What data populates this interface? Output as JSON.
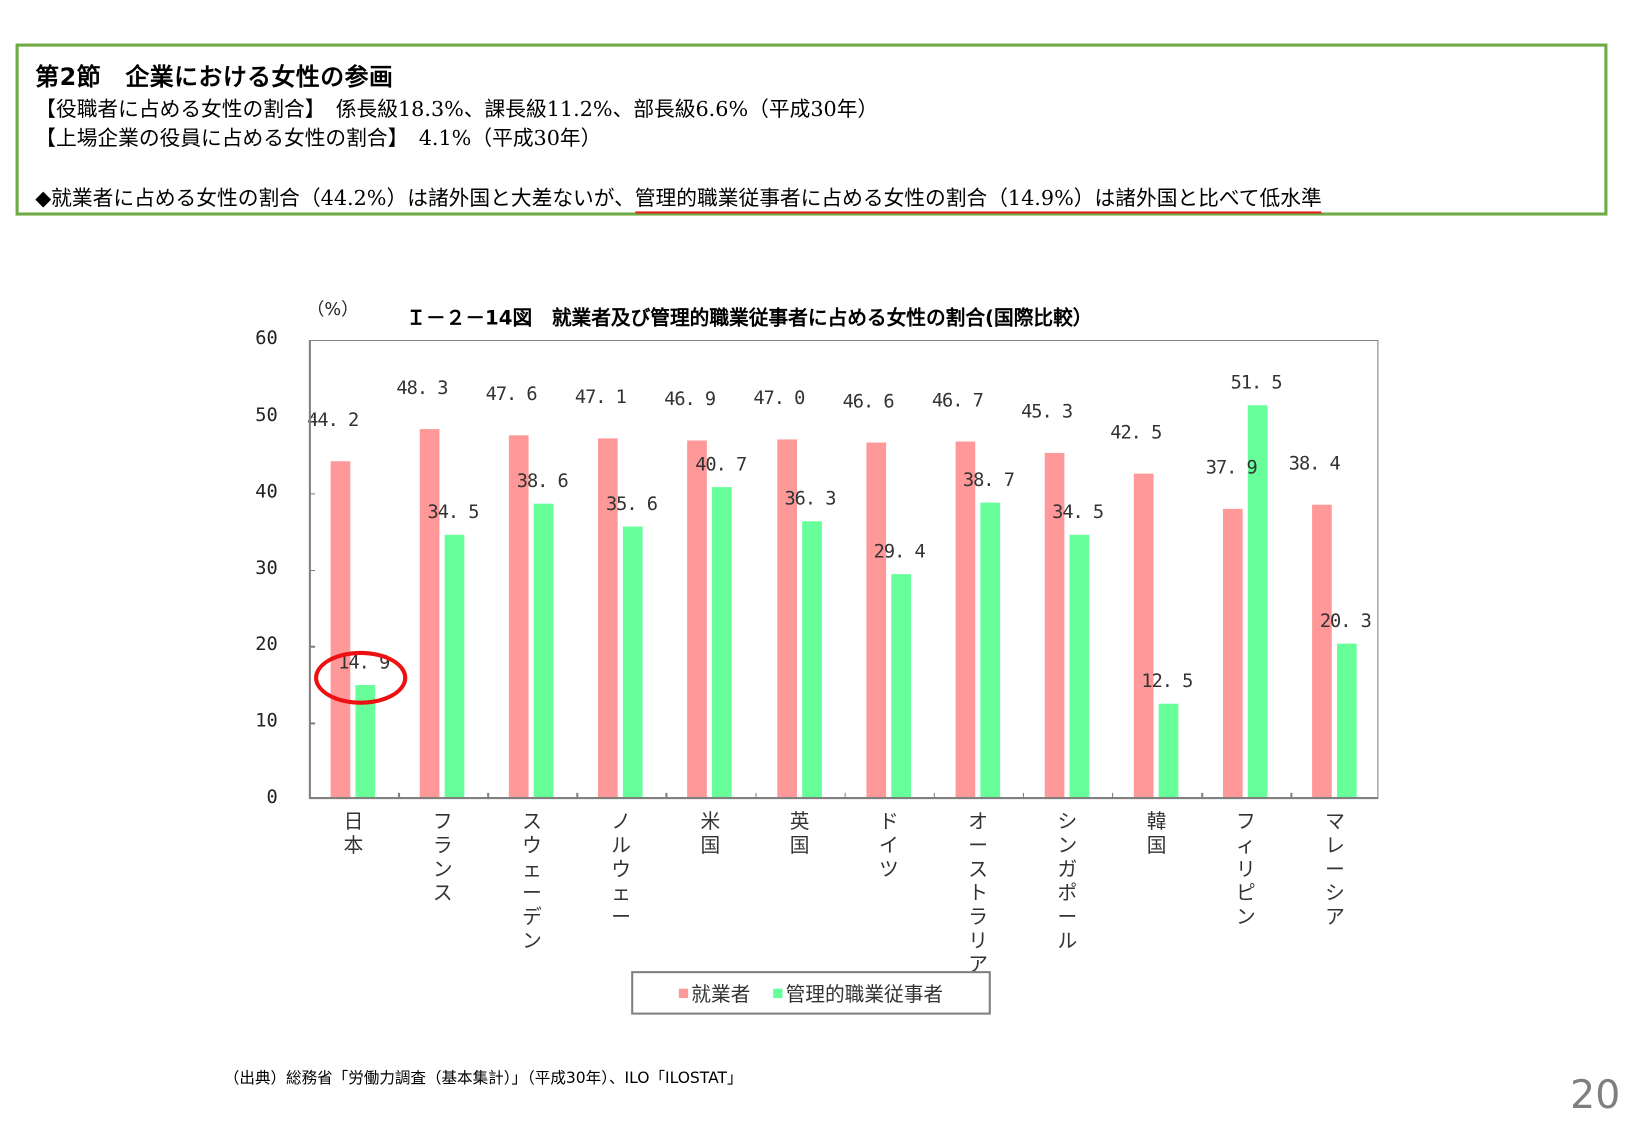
{
  "summary": {
    "section_title": "第2節　企業における女性の参画",
    "line1": "【役職者に占める女性の割合】　係長級18.3%、課長級11.2%、部長級6.6%（平成30年）",
    "line2": "【上場企業の役員に占める女性の割合】　4.1%（平成30年）",
    "line3_prefix": "◆就業者に占める女性の割合（44.2%）は諸外国と大差ないが、",
    "line3_highlight": "管理的職業従事者に占める女性の割合（14.9%）は諸外国と比べて低水準",
    "border_color": "#6fac46",
    "highlight_color": "#e02020"
  },
  "chart": {
    "unit_label": "（%）",
    "title": "Ｉ－２－14図　就業者及び管理的職業従事者に占める女性の割合(国際比較）",
    "legend": [
      "就業者",
      "管理的職業従事者"
    ],
    "source": "（出典）総務省「労働力調査（基本集計）」（平成30年）、ILO「ILOSTAT」"
  },
  "page_number": "20",
  "chart_data": {
    "type": "bar",
    "title": "Ｉ－２－14図 就業者及び管理的職業従事者に占める女性の割合(国際比較）",
    "xlabel": "",
    "ylabel": "（%）",
    "ylim": [
      0,
      60
    ],
    "yticks": [
      0,
      10,
      20,
      30,
      40,
      50,
      60
    ],
    "grid": false,
    "legend_position": "bottom",
    "categories": [
      "日本",
      "フランス",
      "スウェーデン",
      "ノルウェー",
      "米国",
      "英国",
      "ドイツ",
      "オーストラリア",
      "シンガポール",
      "韓国",
      "フィリピン",
      "マレーシア"
    ],
    "series": [
      {
        "name": "就業者",
        "color": "#ff9999",
        "values": [
          44.2,
          48.3,
          47.6,
          47.1,
          46.9,
          47.0,
          46.6,
          46.7,
          45.3,
          42.5,
          37.9,
          38.4
        ]
      },
      {
        "name": "管理的職業従事者",
        "color": "#66ff99",
        "values": [
          14.9,
          34.5,
          38.6,
          35.6,
          40.7,
          36.3,
          29.4,
          38.7,
          34.5,
          12.5,
          51.5,
          20.3
        ]
      }
    ],
    "annotations": [
      {
        "type": "ellipse",
        "target": "日本 管理的職業従事者 14.9",
        "color": "#ee1111"
      }
    ]
  }
}
